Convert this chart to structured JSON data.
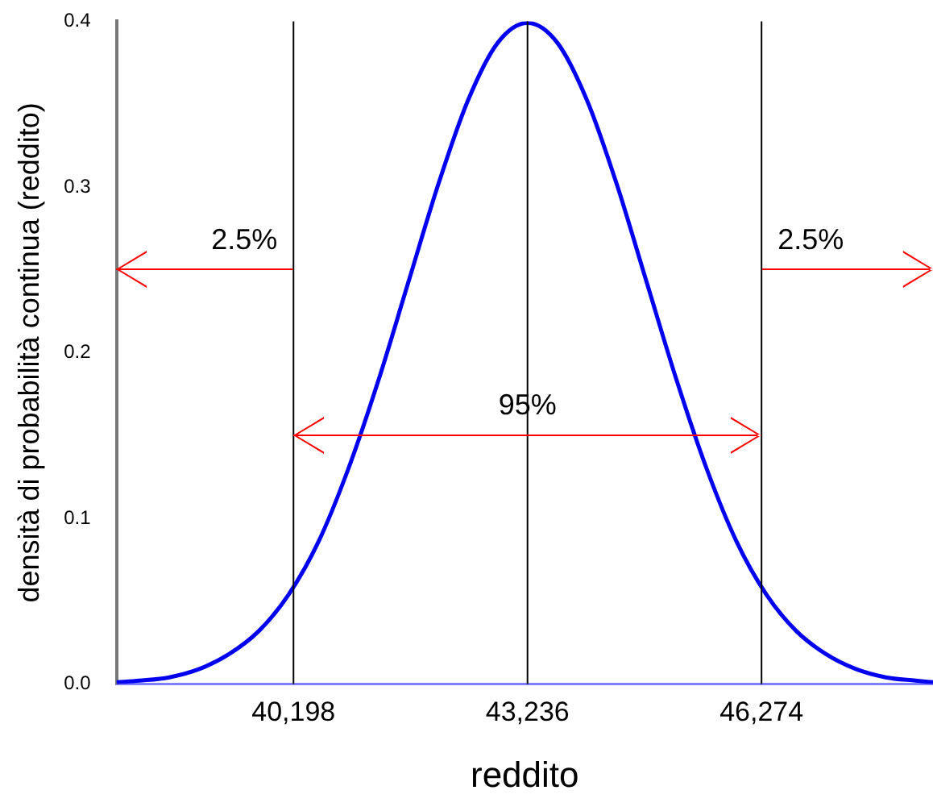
{
  "chart_data": {
    "type": "line",
    "xlabel": "reddito",
    "ylabel": "densità di probabilità continua (reddito)",
    "x": [
      37900,
      38199,
      38586,
      38974,
      39361,
      39749,
      40136,
      40524,
      40911,
      41299,
      41686,
      42074,
      42461,
      42849,
      43236,
      43624,
      44011,
      44399,
      44786,
      45174,
      45561,
      45949,
      46336,
      46724,
      47111,
      47499,
      47886,
      48274,
      48500
    ],
    "series": [
      {
        "color": "#0000ee",
        "values": [
          0.001,
          0.002,
          0.004,
          0.009,
          0.018,
          0.032,
          0.054,
          0.086,
          0.13,
          0.183,
          0.242,
          0.301,
          0.352,
          0.387,
          0.399,
          0.387,
          0.352,
          0.301,
          0.242,
          0.183,
          0.13,
          0.086,
          0.054,
          0.032,
          0.018,
          0.009,
          0.004,
          0.002,
          0.001
        ]
      }
    ],
    "xlim": [
      37900,
      48500
    ],
    "xticks": [
      {
        "value": 40198,
        "label": "40,198"
      },
      {
        "value": 43236,
        "label": "43,236"
      },
      {
        "value": 46274,
        "label": "46,274"
      }
    ],
    "ylim": [
      0,
      0.4
    ],
    "yticks": [
      {
        "value": 0,
        "label": "0.0"
      },
      0.1,
      0.2,
      0.3,
      0.4
    ],
    "ref_lines": [
      {
        "axis": "x",
        "value": 40198,
        "color": "#000000"
      },
      {
        "axis": "x",
        "value": 43236,
        "color": "#000000"
      },
      {
        "axis": "x",
        "value": 46274,
        "color": "#000000"
      }
    ],
    "annotations": [
      "2.5%",
      "95%",
      "2.5%"
    ],
    "grid": false,
    "legend": false,
    "marker": "none",
    "line_style": "solid"
  }
}
